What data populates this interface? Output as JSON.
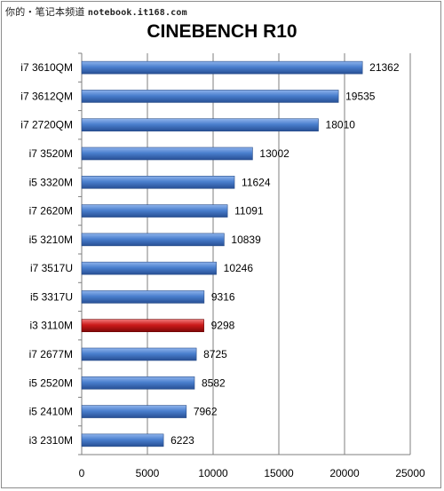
{
  "watermark": {
    "text": "你的・笔记本频道",
    "site": "notebook.it168.com"
  },
  "chart_data": {
    "type": "bar",
    "orientation": "horizontal",
    "title": "CINEBENCH R10",
    "xlabel": "",
    "ylabel": "",
    "xlim": [
      0,
      25000
    ],
    "ticks": [
      "0",
      "5000",
      "10000",
      "15000",
      "20000",
      "25000"
    ],
    "grid": true,
    "categories": [
      "i7 3610QM",
      "i7 3612QM",
      "i7 2720QM",
      "i7 3520M",
      "i5 3320M",
      "i7 2620M",
      "i5 3210M",
      "i7 3517U",
      "i5 3317U",
      "i3 3110M",
      "i7 2677M",
      "i5 2520M",
      "i5 2410M",
      "i3 2310M"
    ],
    "values": [
      21362,
      19535,
      18010,
      13002,
      11624,
      11091,
      10839,
      10246,
      9316,
      9298,
      8725,
      8582,
      7962,
      6223
    ],
    "highlight": "i3 3110M",
    "colors": {
      "bar": "#4a7fce",
      "highlight": "#cc1a1a",
      "grid": "#7f7f7f"
    }
  }
}
